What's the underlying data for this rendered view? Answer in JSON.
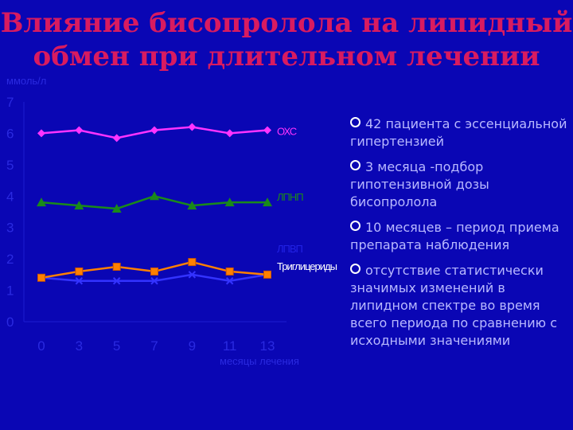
{
  "slide": {
    "title_line1": "Влияние бисопролола на липидный",
    "title_line2": "обмен при длительном лечении",
    "colors": {
      "background": "#0a06b4",
      "title": "#d81b60",
      "text": "#b9b9ff"
    }
  },
  "bullets": [
    "42 пациента с эссенциальной гипертензией",
    "3 месяца -подбор гипотензивной дозы бисопролола",
    "10 месяцев – период приема препарата наблюдения",
    "отсутствие статистически значимых изменений в липидном спектре во время всего периода по сравнению с исходными значениями"
  ],
  "chart_data": {
    "type": "line",
    "ylabel": "ммоль/л",
    "xlabel": "месяцы лечения",
    "x": [
      0,
      3,
      5,
      7,
      9,
      11,
      13
    ],
    "ylim": [
      0,
      7
    ],
    "yticks": [
      0,
      1,
      2,
      3,
      4,
      5,
      6,
      7
    ],
    "series": [
      {
        "name": "ОХС",
        "values": [
          6.0,
          6.1,
          5.85,
          6.1,
          6.2,
          6.0,
          6.1
        ],
        "color": "#ff33ff",
        "marker": "diamond"
      },
      {
        "name": "ЛПНП",
        "values": [
          3.8,
          3.7,
          3.6,
          4.0,
          3.7,
          3.8,
          3.8
        ],
        "color": "#1a8a1a",
        "marker": "triangle"
      },
      {
        "name": "ЛПВП",
        "values": [
          1.4,
          1.3,
          1.3,
          1.3,
          1.5,
          1.3,
          1.5
        ],
        "color": "#3333ff",
        "marker": "x"
      },
      {
        "name": "Триглицериды",
        "values": [
          1.4,
          1.6,
          1.75,
          1.6,
          1.9,
          1.6,
          1.5
        ],
        "color": "#ff8000",
        "marker": "square"
      }
    ]
  }
}
